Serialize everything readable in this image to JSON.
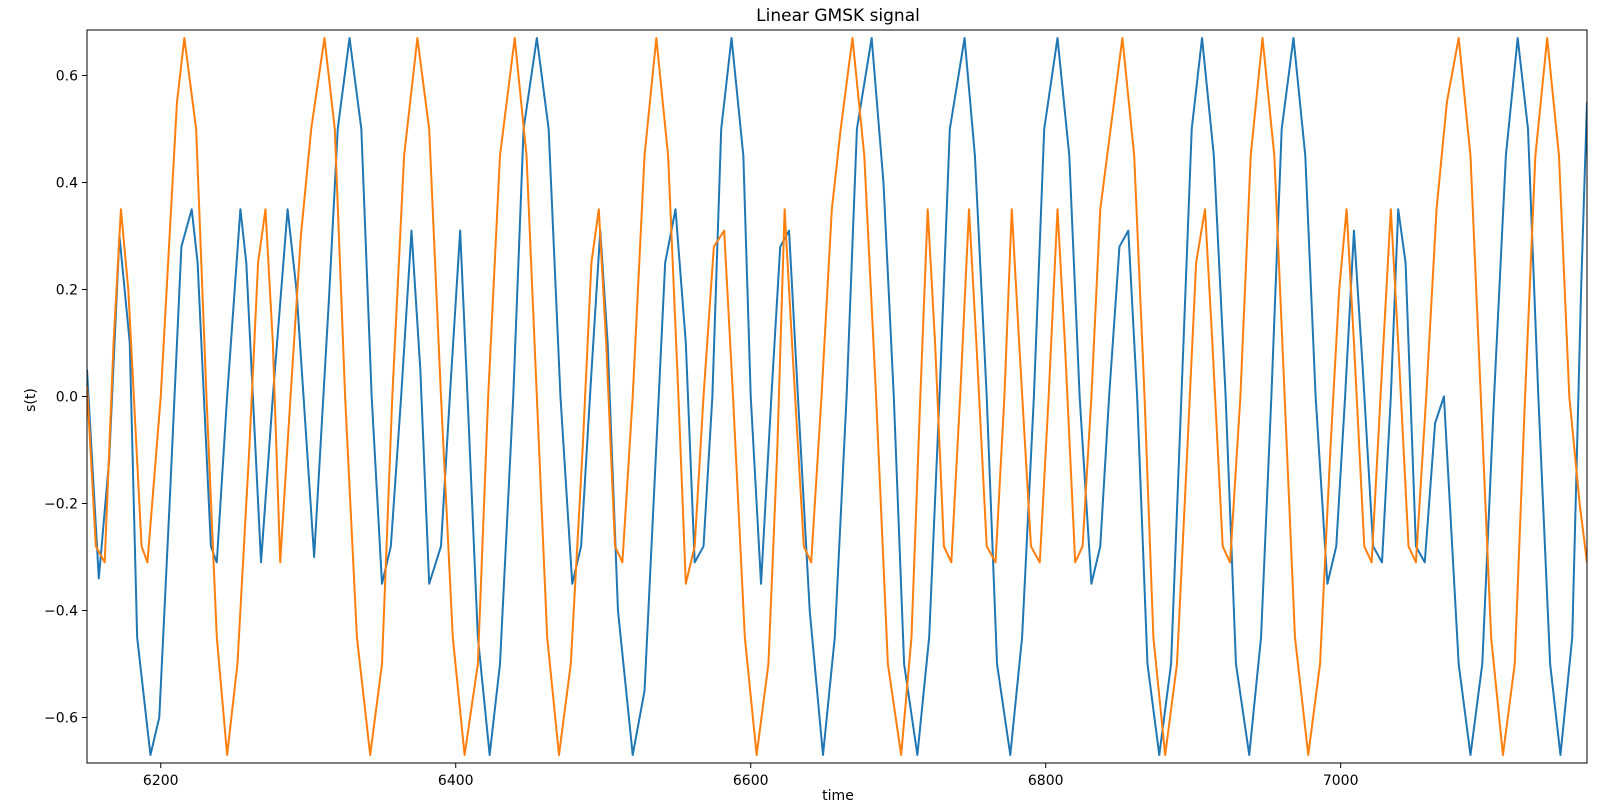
{
  "chart_data": {
    "type": "line",
    "title": "Linear GMSK signal",
    "xlabel": "time",
    "ylabel": "s(t)",
    "xlim": [
      6150,
      7167
    ],
    "ylim": [
      -0.685,
      0.685
    ],
    "grid": false,
    "legend": "none",
    "x_ticks": [
      6200,
      6400,
      6600,
      6800,
      7000
    ],
    "x_tick_labels": [
      "6200",
      "6400",
      "6600",
      "6800",
      "7000"
    ],
    "y_ticks": [
      -0.6,
      -0.4,
      -0.2,
      0.0,
      0.2,
      0.4,
      0.6
    ],
    "y_tick_labels": [
      "−0.6",
      "−0.4",
      "−0.2",
      "0.0",
      "0.2",
      "0.4",
      "0.6"
    ],
    "series": [
      {
        "color": "#1f77b4",
        "points": [
          [
            6150,
            0.05
          ],
          [
            6158,
            -0.34
          ],
          [
            6165,
            -0.12
          ],
          [
            6172,
            0.3
          ],
          [
            6179,
            0.1
          ],
          [
            6184,
            -0.45
          ],
          [
            6193,
            -0.67
          ],
          [
            6199,
            -0.6
          ],
          [
            6206,
            -0.2
          ],
          [
            6214,
            0.28
          ],
          [
            6221,
            0.35
          ],
          [
            6225,
            0.25
          ],
          [
            6234,
            -0.28
          ],
          [
            6238,
            -0.31
          ],
          [
            6245,
            0.0
          ],
          [
            6254,
            0.35
          ],
          [
            6258,
            0.25
          ],
          [
            6268,
            -0.31
          ],
          [
            6276,
            0.0
          ],
          [
            6286,
            0.35
          ],
          [
            6292,
            0.2
          ],
          [
            6304,
            -0.3
          ],
          [
            6314,
            0.18
          ],
          [
            6320,
            0.5
          ],
          [
            6328,
            0.67
          ],
          [
            6336,
            0.5
          ],
          [
            6343,
            0.0
          ],
          [
            6350,
            -0.35
          ],
          [
            6356,
            -0.28
          ],
          [
            6363,
            0.0
          ],
          [
            6370,
            0.31
          ],
          [
            6376,
            0.05
          ],
          [
            6382,
            -0.35
          ],
          [
            6390,
            -0.28
          ],
          [
            6396,
            0.0
          ],
          [
            6403,
            0.31
          ],
          [
            6408,
            0.0
          ],
          [
            6415,
            -0.45
          ],
          [
            6423,
            -0.67
          ],
          [
            6430,
            -0.5
          ],
          [
            6439,
            0.0
          ],
          [
            6446,
            0.5
          ],
          [
            6455,
            0.67
          ],
          [
            6463,
            0.5
          ],
          [
            6471,
            0.0
          ],
          [
            6479,
            -0.35
          ],
          [
            6485,
            -0.28
          ],
          [
            6491,
            0.0
          ],
          [
            6498,
            0.31
          ],
          [
            6503,
            0.1
          ],
          [
            6510,
            -0.4
          ],
          [
            6520,
            -0.67
          ],
          [
            6528,
            -0.55
          ],
          [
            6535,
            -0.15
          ],
          [
            6542,
            0.25
          ],
          [
            6549,
            0.35
          ],
          [
            6556,
            0.1
          ],
          [
            6562,
            -0.31
          ],
          [
            6568,
            -0.28
          ],
          [
            6574,
            0.0
          ],
          [
            6580,
            0.5
          ],
          [
            6587,
            0.67
          ],
          [
            6595,
            0.45
          ],
          [
            6600,
            0.0
          ],
          [
            6607,
            -0.35
          ],
          [
            6614,
            0.0
          ],
          [
            6620,
            0.28
          ],
          [
            6626,
            0.31
          ],
          [
            6632,
            0.0
          ],
          [
            6640,
            -0.4
          ],
          [
            6649,
            -0.67
          ],
          [
            6657,
            -0.45
          ],
          [
            6665,
            0.0
          ],
          [
            6672,
            0.5
          ],
          [
            6682,
            0.67
          ],
          [
            6690,
            0.4
          ],
          [
            6697,
            0.0
          ],
          [
            6704,
            -0.5
          ],
          [
            6713,
            -0.67
          ],
          [
            6721,
            -0.45
          ],
          [
            6728,
            0.0
          ],
          [
            6735,
            0.5
          ],
          [
            6745,
            0.67
          ],
          [
            6752,
            0.45
          ],
          [
            6760,
            0.0
          ],
          [
            6767,
            -0.5
          ],
          [
            6776,
            -0.67
          ],
          [
            6784,
            -0.45
          ],
          [
            6792,
            0.0
          ],
          [
            6799,
            0.5
          ],
          [
            6808,
            0.67
          ],
          [
            6816,
            0.45
          ],
          [
            6823,
            0.0
          ],
          [
            6831,
            -0.35
          ],
          [
            6837,
            -0.28
          ],
          [
            6843,
            0.0
          ],
          [
            6850,
            0.28
          ],
          [
            6856,
            0.31
          ],
          [
            6862,
            0.0
          ],
          [
            6869,
            -0.5
          ],
          [
            6877,
            -0.67
          ],
          [
            6885,
            -0.5
          ],
          [
            6892,
            0.0
          ],
          [
            6899,
            0.5
          ],
          [
            6906,
            0.67
          ],
          [
            6914,
            0.45
          ],
          [
            6922,
            0.0
          ],
          [
            6929,
            -0.5
          ],
          [
            6938,
            -0.67
          ],
          [
            6946,
            -0.45
          ],
          [
            6953,
            0.0
          ],
          [
            6960,
            0.5
          ],
          [
            6968,
            0.67
          ],
          [
            6976,
            0.45
          ],
          [
            6983,
            0.0
          ],
          [
            6991,
            -0.35
          ],
          [
            6997,
            -0.28
          ],
          [
            7003,
            0.0
          ],
          [
            7009,
            0.31
          ],
          [
            7015,
            0.05
          ],
          [
            7022,
            -0.28
          ],
          [
            7028,
            -0.31
          ],
          [
            7034,
            0.0
          ],
          [
            7039,
            0.35
          ],
          [
            7044,
            0.25
          ],
          [
            7051,
            -0.28
          ],
          [
            7057,
            -0.31
          ],
          [
            7064,
            -0.05
          ],
          [
            7070,
            0.0
          ],
          [
            7080,
            -0.5
          ],
          [
            7088,
            -0.67
          ],
          [
            7096,
            -0.5
          ],
          [
            7104,
            0.0
          ],
          [
            7112,
            0.45
          ],
          [
            7120,
            0.67
          ],
          [
            7127,
            0.5
          ],
          [
            7134,
            0.0
          ],
          [
            7142,
            -0.5
          ],
          [
            7149,
            -0.67
          ],
          [
            7157,
            -0.45
          ],
          [
            7163,
            0.2
          ],
          [
            7167,
            0.55
          ]
        ]
      },
      {
        "color": "#ff7f0e",
        "points": [
          [
            6150,
            0.02
          ],
          [
            6156,
            -0.28
          ],
          [
            6162,
            -0.31
          ],
          [
            6168,
            0.1
          ],
          [
            6173,
            0.35
          ],
          [
            6178,
            0.2
          ],
          [
            6187,
            -0.28
          ],
          [
            6191,
            -0.31
          ],
          [
            6200,
            0.0
          ],
          [
            6207,
            0.35
          ],
          [
            6211,
            0.55
          ],
          [
            6216,
            0.67
          ],
          [
            6224,
            0.5
          ],
          [
            6231,
            0.0
          ],
          [
            6238,
            -0.45
          ],
          [
            6245,
            -0.67
          ],
          [
            6252,
            -0.5
          ],
          [
            6260,
            -0.1
          ],
          [
            6266,
            0.25
          ],
          [
            6271,
            0.35
          ],
          [
            6276,
            0.1
          ],
          [
            6281,
            -0.31
          ],
          [
            6288,
            0.0
          ],
          [
            6295,
            0.3
          ],
          [
            6302,
            0.5
          ],
          [
            6311,
            0.67
          ],
          [
            6318,
            0.5
          ],
          [
            6325,
            0.0
          ],
          [
            6333,
            -0.45
          ],
          [
            6342,
            -0.67
          ],
          [
            6350,
            -0.5
          ],
          [
            6357,
            0.0
          ],
          [
            6365,
            0.45
          ],
          [
            6374,
            0.67
          ],
          [
            6382,
            0.5
          ],
          [
            6390,
            0.0
          ],
          [
            6398,
            -0.45
          ],
          [
            6406,
            -0.67
          ],
          [
            6415,
            -0.5
          ],
          [
            6422,
            0.0
          ],
          [
            6430,
            0.45
          ],
          [
            6440,
            0.67
          ],
          [
            6448,
            0.45
          ],
          [
            6455,
            0.0
          ],
          [
            6462,
            -0.45
          ],
          [
            6470,
            -0.67
          ],
          [
            6478,
            -0.5
          ],
          [
            6486,
            -0.1
          ],
          [
            6492,
            0.25
          ],
          [
            6497,
            0.35
          ],
          [
            6502,
            0.1
          ],
          [
            6508,
            -0.28
          ],
          [
            6513,
            -0.31
          ],
          [
            6520,
            0.0
          ],
          [
            6528,
            0.45
          ],
          [
            6536,
            0.67
          ],
          [
            6544,
            0.45
          ],
          [
            6551,
            0.0
          ],
          [
            6556,
            -0.35
          ],
          [
            6562,
            -0.28
          ],
          [
            6568,
            0.0
          ],
          [
            6575,
            0.28
          ],
          [
            6582,
            0.31
          ],
          [
            6588,
            0.0
          ],
          [
            6596,
            -0.45
          ],
          [
            6604,
            -0.67
          ],
          [
            6612,
            -0.5
          ],
          [
            6618,
            -0.1
          ],
          [
            6623,
            0.35
          ],
          [
            6628,
            0.1
          ],
          [
            6636,
            -0.28
          ],
          [
            6641,
            -0.31
          ],
          [
            6648,
            0.0
          ],
          [
            6655,
            0.35
          ],
          [
            6661,
            0.5
          ],
          [
            6669,
            0.67
          ],
          [
            6677,
            0.45
          ],
          [
            6685,
            0.0
          ],
          [
            6693,
            -0.5
          ],
          [
            6702,
            -0.67
          ],
          [
            6709,
            -0.45
          ],
          [
            6715,
            0.0
          ],
          [
            6720,
            0.35
          ],
          [
            6725,
            0.1
          ],
          [
            6731,
            -0.28
          ],
          [
            6736,
            -0.31
          ],
          [
            6742,
            0.0
          ],
          [
            6748,
            0.35
          ],
          [
            6753,
            0.1
          ],
          [
            6760,
            -0.28
          ],
          [
            6766,
            -0.31
          ],
          [
            6772,
            0.0
          ],
          [
            6777,
            0.35
          ],
          [
            6782,
            0.1
          ],
          [
            6790,
            -0.28
          ],
          [
            6796,
            -0.31
          ],
          [
            6802,
            0.0
          ],
          [
            6808,
            0.35
          ],
          [
            6813,
            0.1
          ],
          [
            6820,
            -0.31
          ],
          [
            6825,
            -0.28
          ],
          [
            6831,
            0.0
          ],
          [
            6837,
            0.35
          ],
          [
            6844,
            0.5
          ],
          [
            6852,
            0.67
          ],
          [
            6860,
            0.45
          ],
          [
            6867,
            0.0
          ],
          [
            6873,
            -0.45
          ],
          [
            6881,
            -0.67
          ],
          [
            6889,
            -0.5
          ],
          [
            6896,
            -0.1
          ],
          [
            6902,
            0.25
          ],
          [
            6908,
            0.35
          ],
          [
            6913,
            0.1
          ],
          [
            6920,
            -0.28
          ],
          [
            6925,
            -0.31
          ],
          [
            6932,
            0.0
          ],
          [
            6939,
            0.45
          ],
          [
            6947,
            0.67
          ],
          [
            6955,
            0.45
          ],
          [
            6962,
            0.0
          ],
          [
            6969,
            -0.45
          ],
          [
            6978,
            -0.67
          ],
          [
            6986,
            -0.5
          ],
          [
            6993,
            -0.1
          ],
          [
            6999,
            0.2
          ],
          [
            7004,
            0.35
          ],
          [
            7009,
            0.1
          ],
          [
            7016,
            -0.28
          ],
          [
            7021,
            -0.31
          ],
          [
            7027,
            0.0
          ],
          [
            7034,
            0.35
          ],
          [
            7039,
            0.1
          ],
          [
            7046,
            -0.28
          ],
          [
            7051,
            -0.31
          ],
          [
            7058,
            0.0
          ],
          [
            7065,
            0.35
          ],
          [
            7072,
            0.55
          ],
          [
            7080,
            0.67
          ],
          [
            7088,
            0.45
          ],
          [
            7095,
            0.0
          ],
          [
            7102,
            -0.45
          ],
          [
            7110,
            -0.67
          ],
          [
            7118,
            -0.5
          ],
          [
            7125,
            0.0
          ],
          [
            7132,
            0.45
          ],
          [
            7140,
            0.67
          ],
          [
            7148,
            0.45
          ],
          [
            7155,
            0.0
          ],
          [
            7162,
            -0.2
          ],
          [
            7167,
            -0.31
          ]
        ]
      }
    ]
  }
}
